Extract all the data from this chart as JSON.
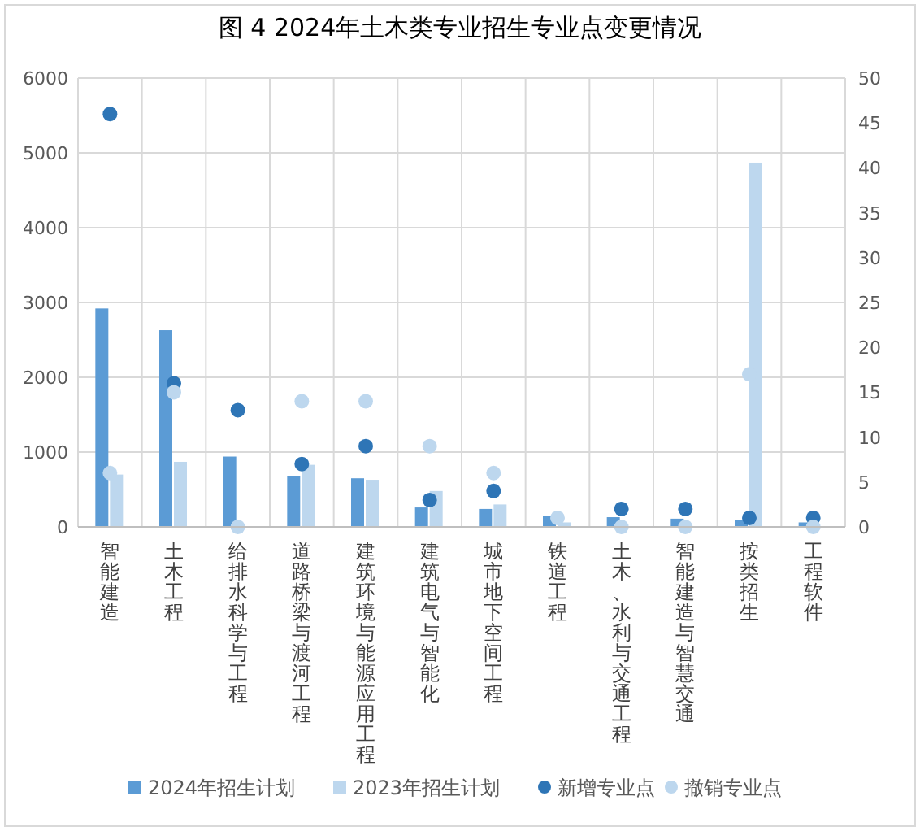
{
  "chart_data": {
    "type": "bar",
    "title": "图 4 2024年土木类专业招生专业点变更情况",
    "categories": [
      "智能建造",
      "土木工程",
      "给排水科学与工程",
      "道路桥梁与渡河工程",
      "建筑环境与能源应用工程",
      "建筑电气与智能化",
      "城市地下空间工程",
      "铁道工程",
      "土木、水利与交通工程",
      "智能建造与智慧交通",
      "按类招生",
      "工程软件"
    ],
    "series": [
      {
        "name": "2024年招生计划",
        "color": "#5b9bd5",
        "values": [
          2920,
          2630,
          940,
          680,
          650,
          260,
          240,
          150,
          130,
          110,
          90,
          60
        ]
      },
      {
        "name": "2023年招生计划",
        "color": "#bdd7ee",
        "values": [
          700,
          870,
          0,
          830,
          630,
          480,
          300,
          60,
          0,
          0,
          4870,
          0
        ]
      },
      {
        "name": "新增专业点",
        "type": "scatter",
        "axis": "y2",
        "color": "#2e75b6",
        "values": [
          46,
          16,
          13,
          7,
          9,
          3,
          4,
          null,
          2,
          2,
          1,
          1
        ]
      },
      {
        "name": "撤销专业点",
        "type": "scatter",
        "axis": "y2",
        "color": "#bdd7ee",
        "values": [
          6,
          15,
          0,
          14,
          14,
          9,
          6,
          1,
          0,
          0,
          17,
          0
        ]
      }
    ],
    "ylim": [
      0,
      6000
    ],
    "yticks": [
      0,
      1000,
      2000,
      3000,
      4000,
      5000,
      6000
    ],
    "y2lim": [
      0,
      50
    ],
    "y2ticks": [
      0,
      5,
      10,
      15,
      20,
      25,
      30,
      35,
      40,
      45,
      50
    ],
    "grid": true,
    "legend": "bottom",
    "marker": "circle"
  }
}
